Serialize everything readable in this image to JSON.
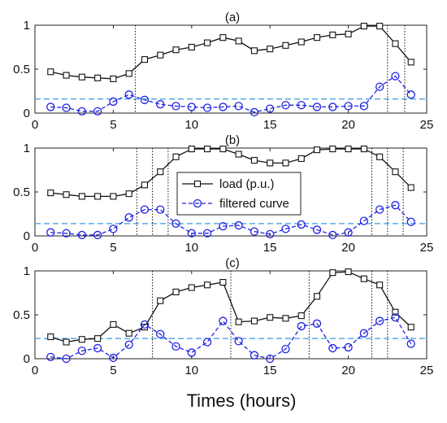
{
  "figure": {
    "xlabel": "Times (hours)",
    "legend": {
      "placement": "inside panel (b), center",
      "entries": [
        "load (p.u.)",
        "filtered curve"
      ]
    }
  },
  "colors": {
    "load": "#111111",
    "filtered": "#1f22e0",
    "threshold": "#3a9be6",
    "vline": "#111111"
  },
  "chart_data": [
    {
      "type": "line",
      "title": "(a)",
      "xlim": [
        0,
        25
      ],
      "ylim": [
        0,
        1
      ],
      "xticks": [
        0,
        5,
        10,
        15,
        20,
        25
      ],
      "yticks": [
        0,
        0.5,
        1
      ],
      "ytick_labels": [
        "0",
        "0.5",
        "1"
      ],
      "x": [
        1,
        2,
        3,
        4,
        5,
        6,
        7,
        8,
        9,
        10,
        11,
        12,
        13,
        14,
        15,
        16,
        17,
        18,
        19,
        20,
        21,
        22,
        23,
        24
      ],
      "series": [
        {
          "name": "load (p.u.)",
          "style": "solid-square",
          "values": [
            0.47,
            0.43,
            0.41,
            0.4,
            0.39,
            0.45,
            0.61,
            0.66,
            0.72,
            0.75,
            0.8,
            0.86,
            0.82,
            0.71,
            0.73,
            0.77,
            0.81,
            0.86,
            0.89,
            0.9,
            0.99,
            0.99,
            0.79,
            0.58
          ]
        },
        {
          "name": "filtered curve",
          "style": "dashed-circle",
          "values": [
            0.07,
            0.06,
            0.02,
            0.02,
            0.13,
            0.21,
            0.15,
            0.1,
            0.08,
            0.07,
            0.06,
            0.07,
            0.08,
            0.01,
            0.05,
            0.09,
            0.09,
            0.07,
            0.07,
            0.08,
            0.08,
            0.3,
            0.42,
            0.21
          ]
        }
      ],
      "threshold": 0.16,
      "vlines": [
        6.4,
        22.5,
        23.6
      ]
    },
    {
      "type": "line",
      "title": "(b)",
      "xlim": [
        0,
        25
      ],
      "ylim": [
        0,
        1
      ],
      "xticks": [
        0,
        5,
        10,
        15,
        20,
        25
      ],
      "yticks": [
        0,
        0.5,
        1
      ],
      "ytick_labels": [
        "0",
        "0.5",
        "1"
      ],
      "x": [
        1,
        2,
        3,
        4,
        5,
        6,
        7,
        8,
        9,
        10,
        11,
        12,
        13,
        14,
        15,
        16,
        17,
        18,
        19,
        20,
        21,
        22,
        23,
        24
      ],
      "series": [
        {
          "name": "load (p.u.)",
          "style": "solid-square",
          "values": [
            0.49,
            0.47,
            0.45,
            0.45,
            0.45,
            0.48,
            0.58,
            0.73,
            0.9,
            0.99,
            0.99,
            0.99,
            0.93,
            0.86,
            0.83,
            0.83,
            0.88,
            0.98,
            0.99,
            0.99,
            0.99,
            0.9,
            0.73,
            0.55
          ]
        },
        {
          "name": "filtered curve",
          "style": "dashed-circle",
          "values": [
            0.04,
            0.03,
            0.01,
            0.01,
            0.08,
            0.21,
            0.3,
            0.3,
            0.14,
            0.03,
            0.03,
            0.11,
            0.12,
            0.05,
            0.02,
            0.08,
            0.13,
            0.07,
            0.01,
            0.04,
            0.17,
            0.3,
            0.35,
            0.16
          ]
        }
      ],
      "threshold": 0.14,
      "vlines": [
        6.5,
        7.5,
        8.5,
        21.5,
        22.5,
        23.5
      ]
    },
    {
      "type": "line",
      "title": "(c)",
      "xlim": [
        0,
        25
      ],
      "ylim": [
        0,
        1
      ],
      "xticks": [
        0,
        5,
        10,
        15,
        20,
        25
      ],
      "yticks": [
        0,
        0.5,
        1
      ],
      "ytick_labels": [
        "0",
        "0.5",
        "1"
      ],
      "x": [
        1,
        2,
        3,
        4,
        5,
        6,
        7,
        8,
        9,
        10,
        11,
        12,
        13,
        14,
        15,
        16,
        17,
        18,
        19,
        20,
        21,
        22,
        23,
        24
      ],
      "series": [
        {
          "name": "load (p.u.)",
          "style": "solid-square",
          "values": [
            0.25,
            0.19,
            0.22,
            0.23,
            0.39,
            0.29,
            0.36,
            0.66,
            0.76,
            0.81,
            0.84,
            0.87,
            0.42,
            0.43,
            0.47,
            0.46,
            0.49,
            0.71,
            0.98,
            0.99,
            0.91,
            0.84,
            0.53,
            0.36
          ]
        },
        {
          "name": "filtered curve",
          "style": "dashed-circle",
          "values": [
            0.02,
            0.0,
            0.09,
            0.12,
            0.01,
            0.16,
            0.39,
            0.28,
            0.14,
            0.07,
            0.19,
            0.43,
            0.2,
            0.04,
            0.0,
            0.11,
            0.37,
            0.4,
            0.12,
            0.13,
            0.29,
            0.43,
            0.47,
            0.17
          ]
        }
      ],
      "threshold": 0.23,
      "vlines": [
        7.5,
        12.5,
        17.5,
        21.5,
        22.5
      ]
    }
  ]
}
